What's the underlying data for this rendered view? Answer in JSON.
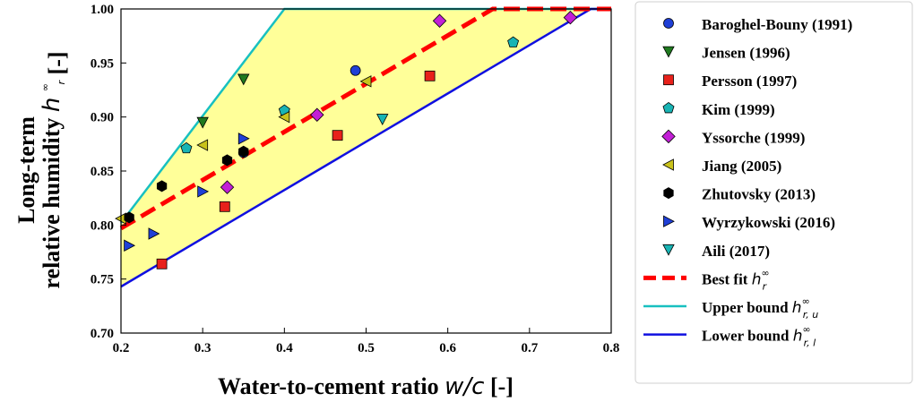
{
  "chart_data": {
    "type": "scatter",
    "xlabel": "Water-to-cement ratio",
    "xlabel_symbol": "w/c",
    "xlabel_unit": "[-]",
    "ylabel_line1": "Long-term",
    "ylabel_line2": "relative humidity",
    "ylabel_symbol": "h",
    "ylabel_sup": "∞",
    "ylabel_sub": "r",
    "ylabel_unit": "[-]",
    "xlim": [
      0.2,
      0.8
    ],
    "ylim": [
      0.7,
      1.0
    ],
    "xticks": [
      "0.2",
      "0.3",
      "0.4",
      "0.5",
      "0.6",
      "0.7",
      "0.8"
    ],
    "yticks": [
      "0.70",
      "0.75",
      "0.80",
      "0.85",
      "0.90",
      "0.95",
      "1.00"
    ],
    "grid": false,
    "legend_position": "outside-right",
    "shaded_region": {
      "color": "#ffff99",
      "upper": [
        [
          0.2,
          0.802
        ],
        [
          0.4,
          1.0
        ],
        [
          0.8,
          1.0
        ]
      ],
      "lower": [
        [
          0.2,
          0.743
        ],
        [
          0.775,
          1.0
        ],
        [
          0.8,
          1.0
        ]
      ]
    },
    "series": [
      {
        "name": "Baroghel-Bouny (1991)",
        "marker": "circle",
        "color": "#1f3fd6",
        "points": [
          [
            0.35,
            0.867
          ],
          [
            0.487,
            0.943
          ]
        ]
      },
      {
        "name": "Jensen (1996)",
        "marker": "triangle-down",
        "color": "#1f7a1f",
        "points": [
          [
            0.3,
            0.895
          ],
          [
            0.35,
            0.935
          ]
        ]
      },
      {
        "name": "Persson (1997)",
        "marker": "square",
        "color": "#e8211b",
        "points": [
          [
            0.25,
            0.764
          ],
          [
            0.327,
            0.817
          ],
          [
            0.465,
            0.883
          ],
          [
            0.578,
            0.938
          ]
        ]
      },
      {
        "name": "Kim (1999)",
        "marker": "pentagon",
        "color": "#18b4b4",
        "points": [
          [
            0.28,
            0.871
          ],
          [
            0.4,
            0.906
          ],
          [
            0.68,
            0.969
          ]
        ]
      },
      {
        "name": "Yssorche (1999)",
        "marker": "diamond",
        "color": "#c21fd6",
        "points": [
          [
            0.33,
            0.835
          ],
          [
            0.44,
            0.902
          ],
          [
            0.59,
            0.989
          ],
          [
            0.75,
            0.992
          ]
        ]
      },
      {
        "name": "Jiang (2005)",
        "marker": "triangle-left",
        "color": "#c9c21b",
        "points": [
          [
            0.2,
            0.806
          ],
          [
            0.3,
            0.874
          ],
          [
            0.4,
            0.9
          ],
          [
            0.5,
            0.933
          ]
        ]
      },
      {
        "name": "Zhutovsky (2013)",
        "marker": "hexagon",
        "color": "#000000",
        "points": [
          [
            0.21,
            0.807
          ],
          [
            0.25,
            0.836
          ],
          [
            0.33,
            0.86
          ],
          [
            0.35,
            0.868
          ]
        ]
      },
      {
        "name": "Wyrzykowski (2016)",
        "marker": "triangle-right",
        "color": "#1f3fd6",
        "points": [
          [
            0.21,
            0.781
          ],
          [
            0.24,
            0.792
          ],
          [
            0.3,
            0.831
          ],
          [
            0.35,
            0.88
          ]
        ]
      },
      {
        "name": "Aili (2017)",
        "marker": "triangle-down",
        "color": "#18b4b4",
        "points": [
          [
            0.52,
            0.898
          ]
        ]
      }
    ],
    "lines": [
      {
        "name": "Best fit",
        "symbol": "h",
        "sup": "∞",
        "sub": "r",
        "style": "dashed",
        "color": "#ff0000",
        "points": [
          [
            0.2,
            0.797
          ],
          [
            0.655,
            1.0
          ],
          [
            0.8,
            1.0
          ]
        ]
      },
      {
        "name": "Upper bound",
        "symbol": "h",
        "sup": "∞",
        "sub": "r, u",
        "style": "solid",
        "color": "#18c0c0",
        "points": [
          [
            0.2,
            0.802
          ],
          [
            0.4,
            1.0
          ],
          [
            0.8,
            1.0
          ]
        ]
      },
      {
        "name": "Lower bound",
        "symbol": "h",
        "sup": "∞",
        "sub": "r, l",
        "style": "solid",
        "color": "#1010e0",
        "points": [
          [
            0.2,
            0.743
          ],
          [
            0.775,
            1.0
          ],
          [
            0.8,
            1.0
          ]
        ]
      }
    ]
  }
}
